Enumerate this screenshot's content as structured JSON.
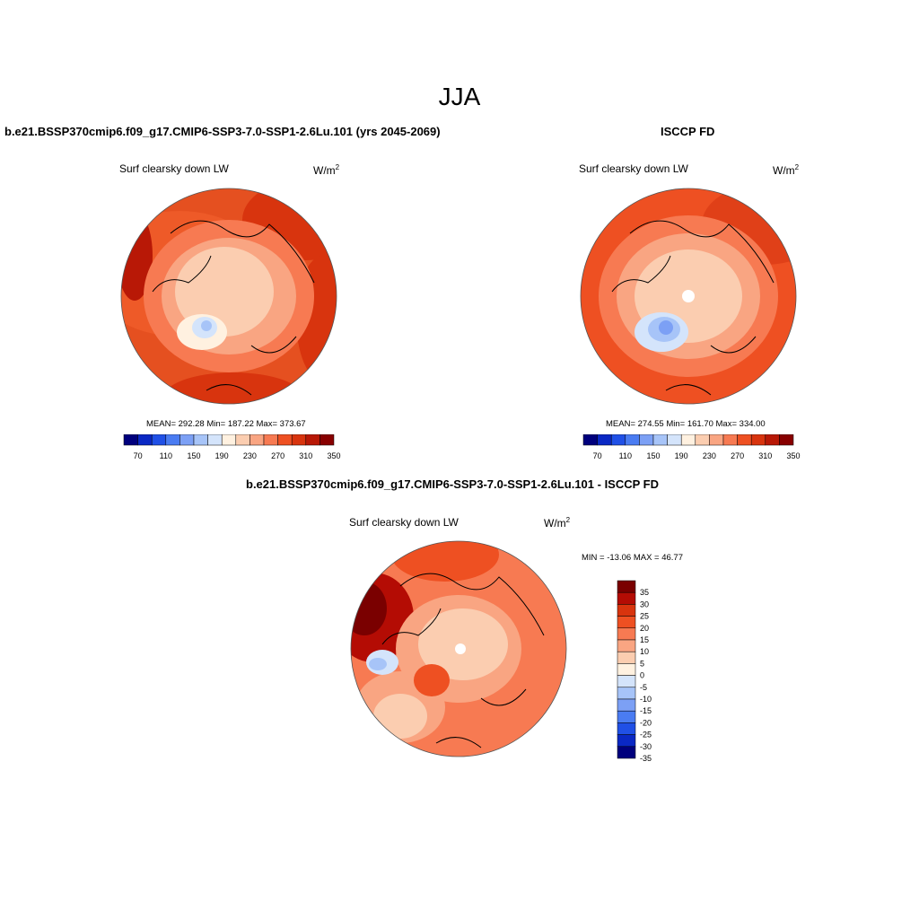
{
  "figure": {
    "season": "JJA"
  },
  "panels": [
    {
      "title": "b.e21.BSSP370cmip6.f09_g17.CMIP6-SSP3-7.0-SSP1-2.6Lu.101 (yrs 2045-2069)",
      "variable": "Surf clearsky down LW",
      "units_base": "W/m",
      "units_exp": "2",
      "stats": "MEAN= 292.28  Min= 187.22  Max= 373.67"
    },
    {
      "title": "ISCCP FD",
      "variable": "Surf clearsky down LW",
      "units_base": "W/m",
      "units_exp": "2",
      "stats": "MEAN= 274.55  Min= 161.70  Max= 334.00"
    },
    {
      "title": "b.e21.BSSP370cmip6.f09_g17.CMIP6-SSP3-7.0-SSP1-2.6Lu.101 - ISCCP FD",
      "variable": "Surf clearsky down LW",
      "units_base": "W/m",
      "units_exp": "2",
      "stats": "MIN = -13.06 MAX =  46.77"
    }
  ],
  "colorbar_abs": {
    "colors": [
      "#00007d",
      "#0a28c4",
      "#2050e6",
      "#4a7cf2",
      "#7ca0f5",
      "#a7c4f8",
      "#d4e4fb",
      "#fff1e0",
      "#fbcdb0",
      "#f9a582",
      "#f77a52",
      "#ee5022",
      "#d8340e",
      "#b81806",
      "#880000"
    ],
    "tick_labels": [
      "70",
      "110",
      "150",
      "190",
      "230",
      "270",
      "310",
      "350"
    ]
  },
  "colorbar_diff": {
    "colors": [
      "#7a0000",
      "#b40c04",
      "#d8340e",
      "#ee5022",
      "#f77a52",
      "#f9a582",
      "#fbcdb0",
      "#fff1e0",
      "#d4e4fb",
      "#a7c4f8",
      "#7ca0f5",
      "#4a7cf2",
      "#2050e6",
      "#0a28c4",
      "#00007d"
    ],
    "tick_labels": [
      "35",
      "30",
      "25",
      "20",
      "15",
      "10",
      "5",
      "0",
      "-5",
      "-10",
      "-15",
      "-20",
      "-25",
      "-30",
      "-35"
    ]
  }
}
